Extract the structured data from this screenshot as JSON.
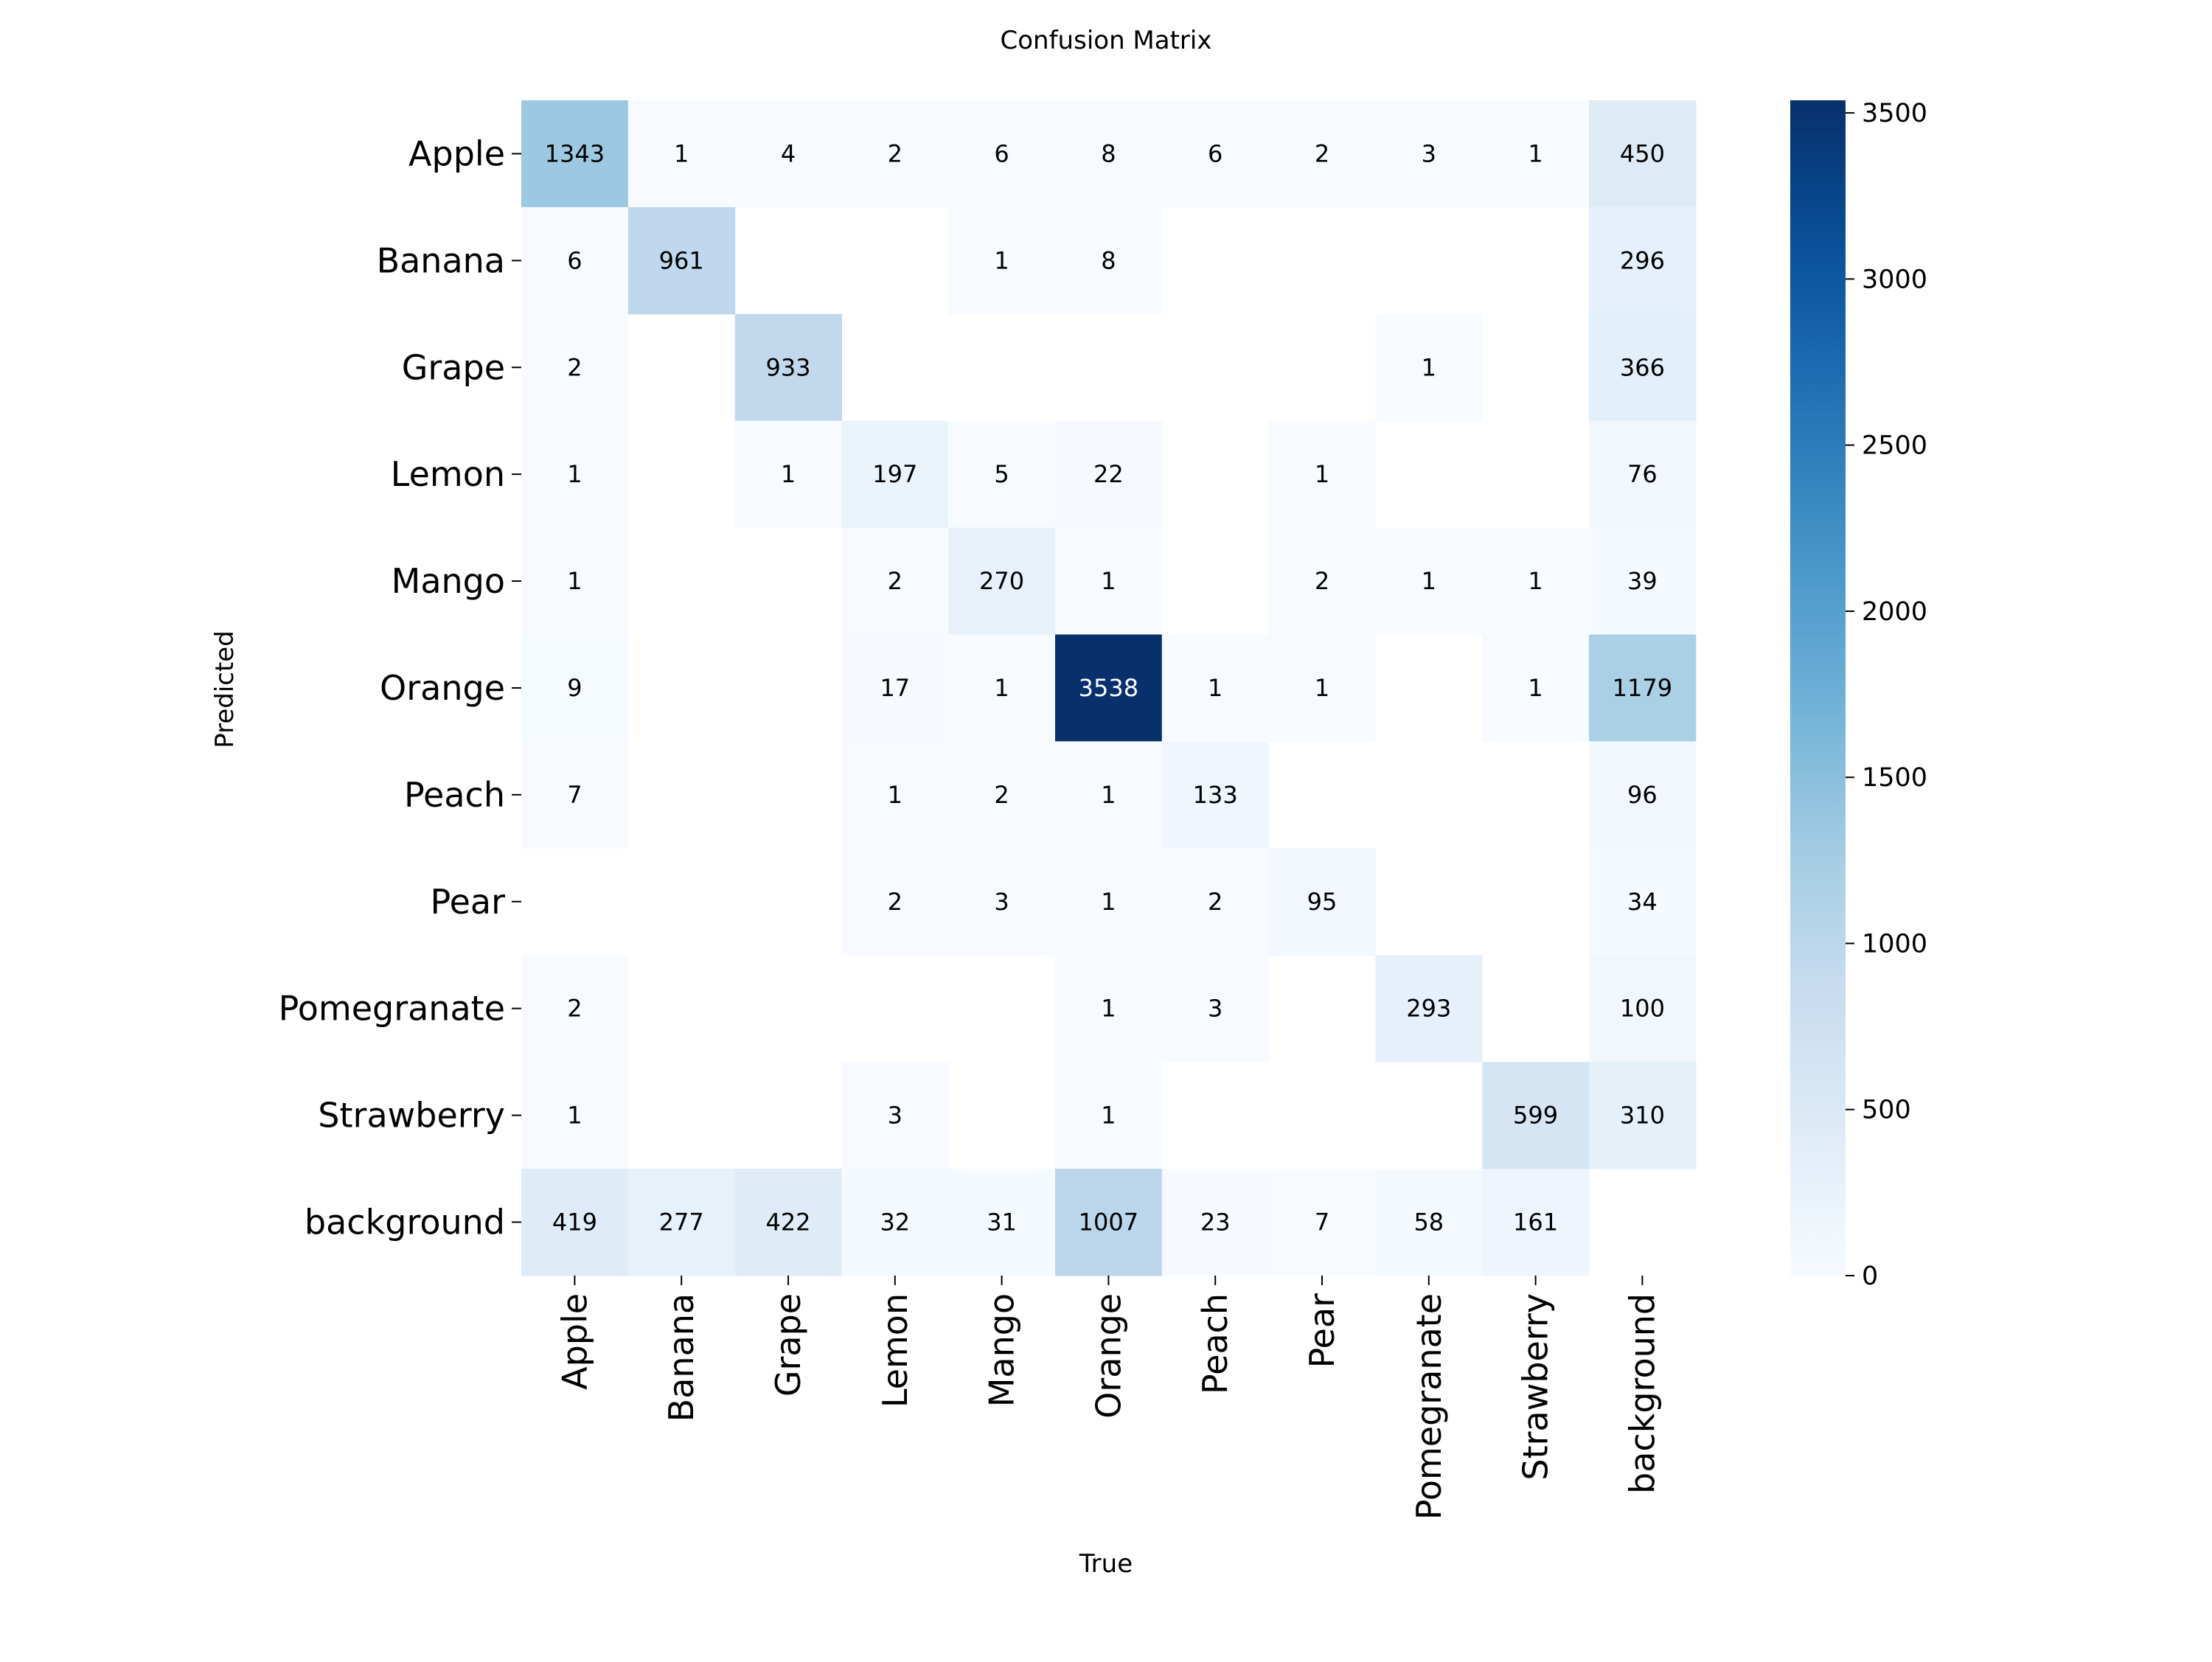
{
  "chart_data": {
    "type": "heatmap",
    "title": "Confusion Matrix",
    "xlabel": "True",
    "ylabel": "Predicted",
    "x_labels": [
      "Apple",
      "Banana",
      "Grape",
      "Lemon",
      "Mango",
      "Orange",
      "Peach",
      "Pear",
      "Pomegranate",
      "Strawberry",
      "background"
    ],
    "y_labels": [
      "Apple",
      "Banana",
      "Grape",
      "Lemon",
      "Mango",
      "Orange",
      "Peach",
      "Pear",
      "Pomegranate",
      "Strawberry",
      "background"
    ],
    "matrix": [
      [
        1343,
        1,
        4,
        2,
        6,
        8,
        6,
        2,
        3,
        1,
        450
      ],
      [
        6,
        961,
        null,
        null,
        1,
        8,
        null,
        null,
        null,
        null,
        296
      ],
      [
        2,
        null,
        933,
        null,
        null,
        null,
        null,
        null,
        1,
        null,
        366
      ],
      [
        1,
        null,
        1,
        197,
        5,
        22,
        null,
        1,
        null,
        null,
        76
      ],
      [
        1,
        null,
        null,
        2,
        270,
        1,
        null,
        2,
        1,
        1,
        39
      ],
      [
        9,
        null,
        null,
        17,
        1,
        3538,
        1,
        1,
        null,
        1,
        1179
      ],
      [
        7,
        null,
        null,
        1,
        2,
        1,
        133,
        null,
        null,
        null,
        96
      ],
      [
        null,
        null,
        null,
        2,
        3,
        1,
        2,
        95,
        null,
        null,
        34
      ],
      [
        2,
        null,
        null,
        null,
        null,
        1,
        3,
        null,
        293,
        null,
        100
      ],
      [
        1,
        null,
        null,
        3,
        null,
        1,
        null,
        null,
        null,
        599,
        310
      ],
      [
        419,
        277,
        422,
        32,
        31,
        1007,
        23,
        7,
        58,
        161,
        null
      ]
    ],
    "colormap": "Blues",
    "colors": {
      "low": "#f7fbff",
      "high": "#08306b",
      "text_dark": "#000000",
      "text_light": "#ffffff"
    },
    "colorbar": {
      "range": [
        0,
        3538
      ],
      "ticks": [
        0,
        500,
        1000,
        1500,
        2000,
        2500,
        3000,
        3500
      ],
      "tick_labels": [
        "0",
        "500",
        "1000",
        "1500",
        "2000",
        "2500",
        "3000",
        "3500"
      ]
    }
  }
}
